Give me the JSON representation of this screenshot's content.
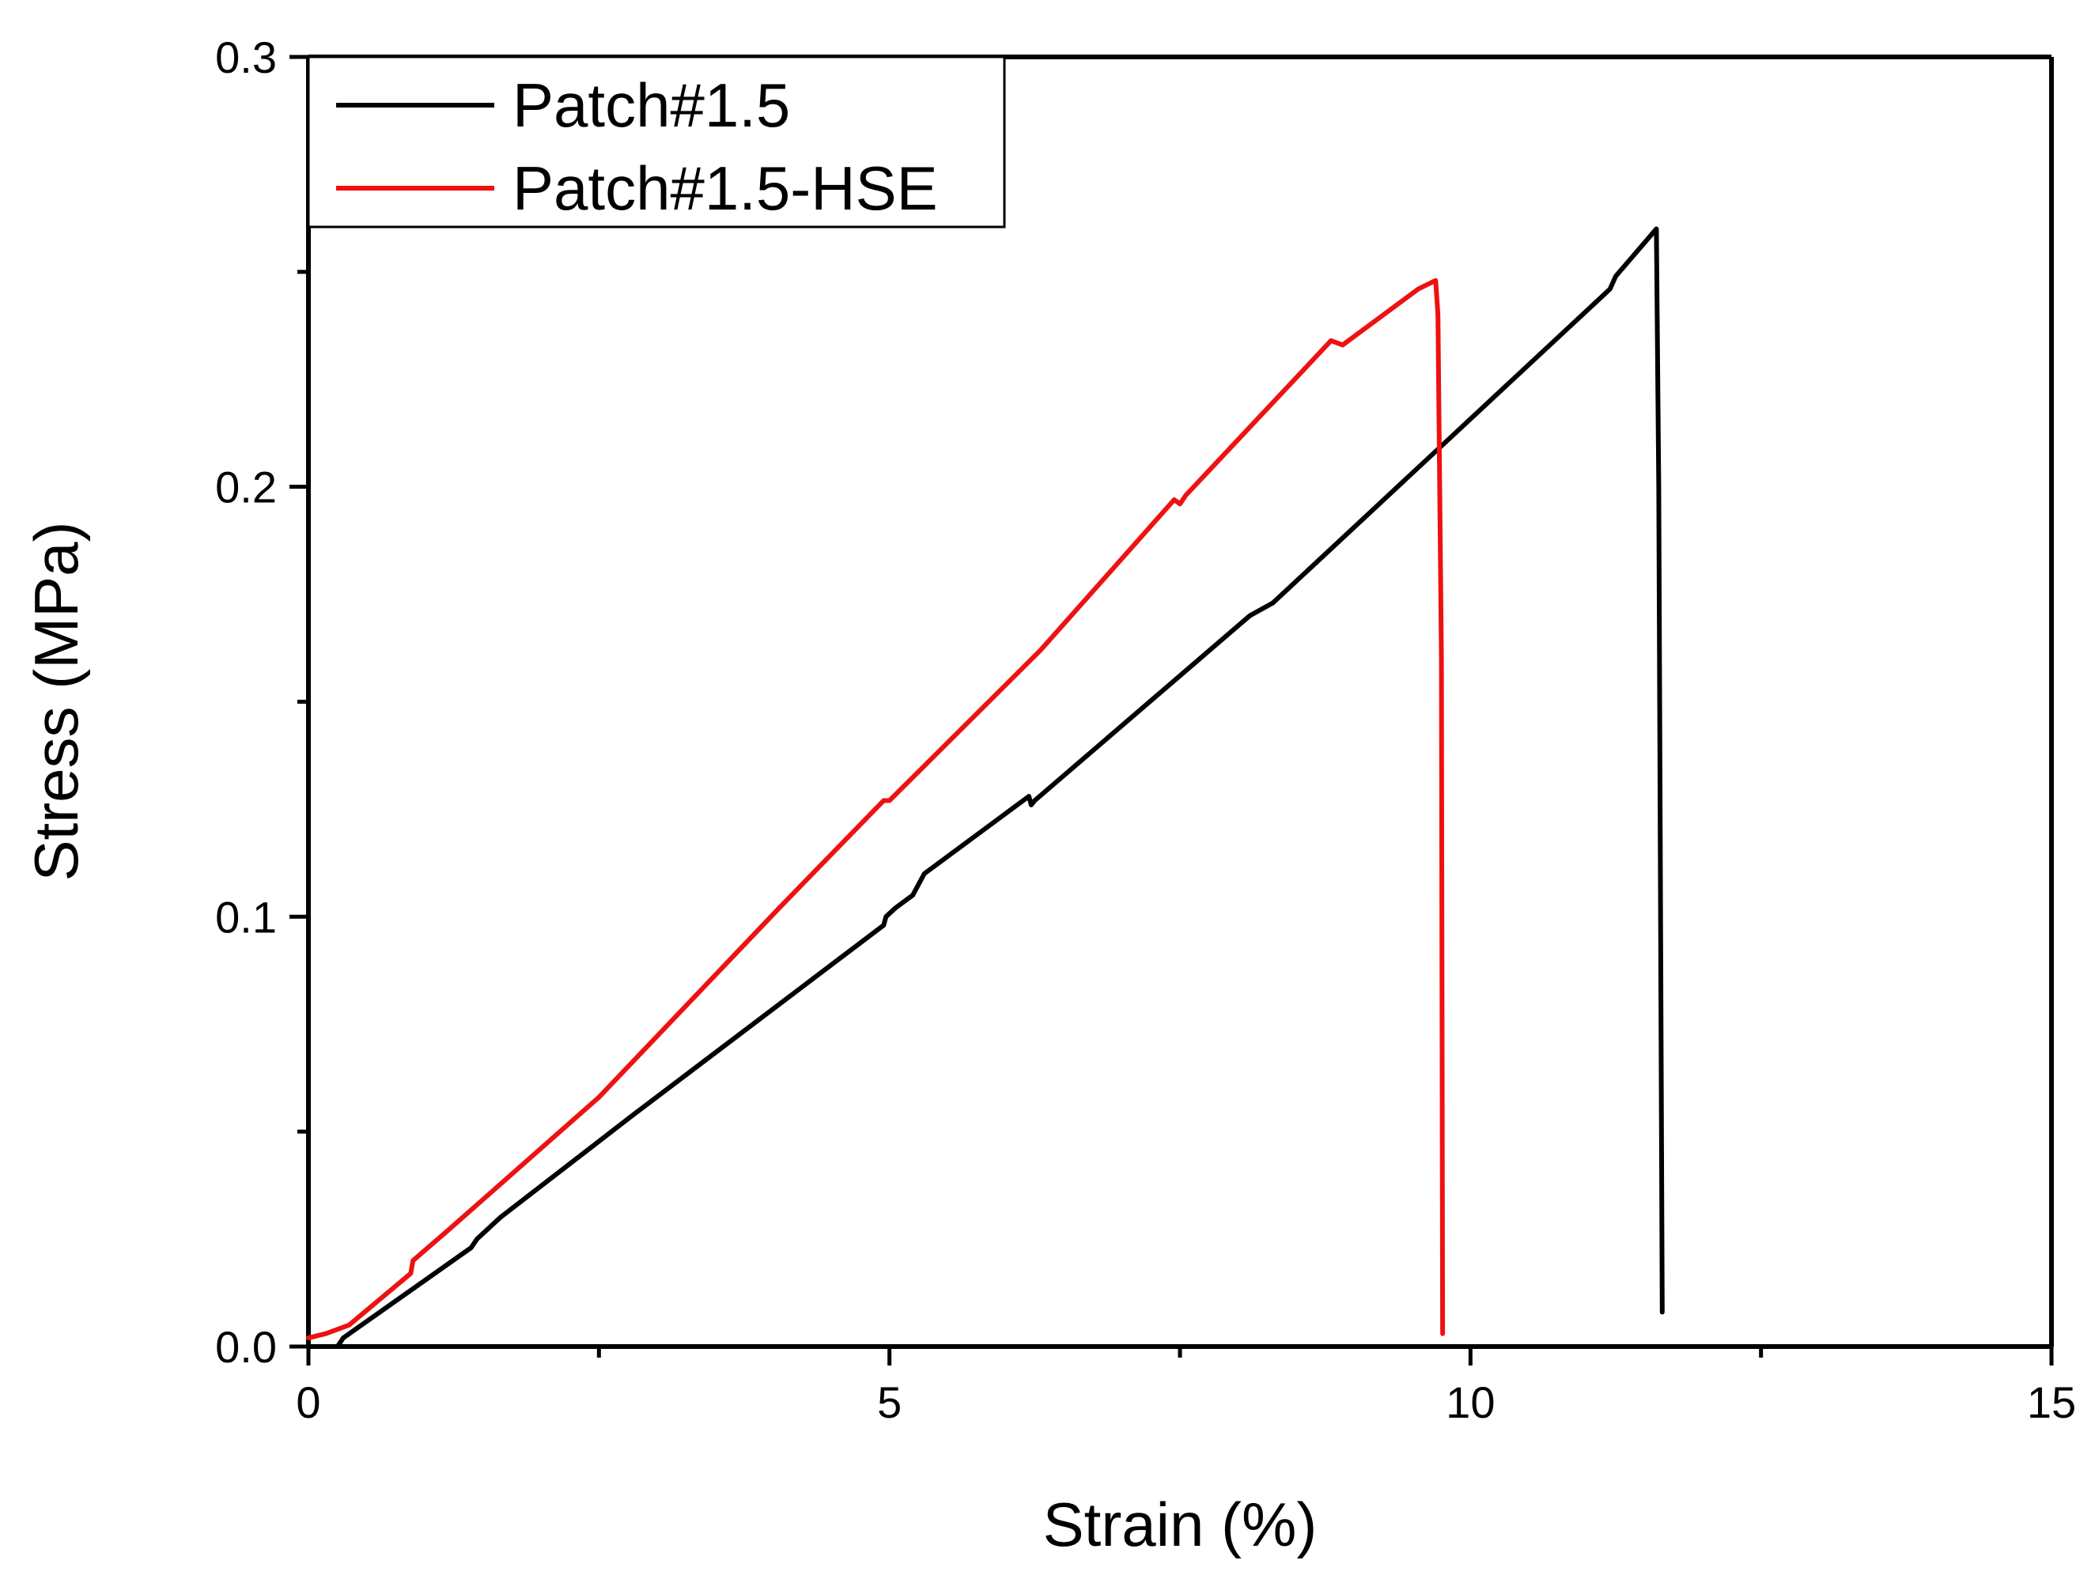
{
  "chart_data": {
    "type": "line",
    "title": "",
    "xlabel": "Strain (%)",
    "ylabel": "Stress (MPa)",
    "xlim": [
      0,
      15
    ],
    "ylim": [
      0,
      0.3
    ],
    "x_ticks": [
      0,
      5,
      10,
      15
    ],
    "x_tick_labels": [
      "0",
      "5",
      "10",
      "15"
    ],
    "x_minor_ticks": [
      2.5,
      7.5,
      12.5
    ],
    "y_ticks": [
      0,
      0.1,
      0.2,
      0.3
    ],
    "y_tick_labels": [
      "0.0",
      "0.1",
      "0.2",
      "0.3"
    ],
    "y_minor_ticks": [
      0.05,
      0.15,
      0.25
    ],
    "grid": false,
    "legend_position": "top-left",
    "series": [
      {
        "name": "Patch#1.5",
        "color": "#000000",
        "x": [
          0,
          0.25,
          0.3,
          1.4,
          1.45,
          1.65,
          2.8,
          4.95,
          4.97,
          5.05,
          5.2,
          5.3,
          6.2,
          6.22,
          6.25,
          8.1,
          8.3,
          11.2,
          11.25,
          11.6,
          11.62,
          11.65
        ],
        "y": [
          0,
          0,
          0.002,
          0.023,
          0.025,
          0.03,
          0.054,
          0.098,
          0.1,
          0.102,
          0.105,
          0.11,
          0.128,
          0.126,
          0.127,
          0.17,
          0.173,
          0.246,
          0.249,
          0.26,
          0.2,
          0.008
        ]
      },
      {
        "name": "Patch#1.5-HSE",
        "color": "#ee1111",
        "x": [
          0,
          0.15,
          0.35,
          0.88,
          0.9,
          1.2,
          2.5,
          4.05,
          4.95,
          5.0,
          6.3,
          7.45,
          7.5,
          7.55,
          8.8,
          8.9,
          9.55,
          9.7,
          9.72,
          9.75,
          9.76
        ],
        "y": [
          0.002,
          0.003,
          0.005,
          0.017,
          0.02,
          0.027,
          0.058,
          0.102,
          0.127,
          0.127,
          0.162,
          0.197,
          0.196,
          0.198,
          0.234,
          0.233,
          0.246,
          0.248,
          0.24,
          0.16,
          0.003
        ]
      }
    ]
  }
}
